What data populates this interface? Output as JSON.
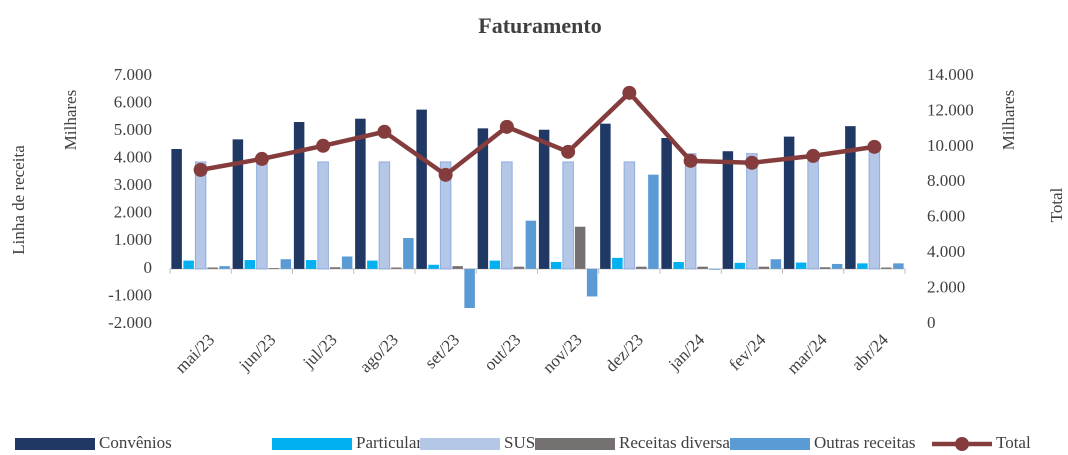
{
  "chart_data": {
    "type": "bar",
    "title": "Faturamento",
    "y_label": "Linha de receita",
    "y_unit": "Milhares",
    "y2_label": "Total",
    "y2_unit": "Milhares",
    "categories": [
      "mai/23",
      "jun/23",
      "jul/23",
      "ago/23",
      "set/23",
      "out/23",
      "nov/23",
      "dez/23",
      "jan/24",
      "fev/24",
      "mar/24",
      "abr/24"
    ],
    "series": [
      {
        "name": "Convênios",
        "color": "#1f3864",
        "values": [
          4350,
          4700,
          5330,
          5450,
          5780,
          5100,
          5050,
          5270,
          4750,
          4270,
          4800,
          5180
        ]
      },
      {
        "name": "Particulares",
        "color": "#00b0f0",
        "values": [
          300,
          320,
          320,
          300,
          150,
          300,
          250,
          400,
          250,
          220,
          230,
          200
        ]
      },
      {
        "name": "SUS",
        "color": "#b4c7e7",
        "values": [
          3880,
          3880,
          3880,
          3880,
          3880,
          3880,
          3880,
          3880,
          4180,
          4180,
          4180,
          4400
        ]
      },
      {
        "name": "Receitas diversas",
        "color": "#767171",
        "values": [
          50,
          30,
          60,
          50,
          100,
          80,
          1530,
          80,
          80,
          80,
          60,
          50
        ]
      },
      {
        "name": "Outras receitas",
        "color": "#5b9bd5",
        "values": [
          100,
          350,
          450,
          1120,
          -1420,
          1750,
          -1000,
          3420,
          -30,
          350,
          180,
          200
        ]
      },
      {
        "name": "Total",
        "type": "line",
        "axis": "y2",
        "color": "#843c3c",
        "values": [
          8700,
          9320,
          10060,
          10850,
          8420,
          11130,
          9720,
          13050,
          9210,
          9100,
          9490,
          10000
        ]
      }
    ],
    "ylim": [
      -2000,
      7000
    ],
    "yticks": [
      {
        "value": -2000,
        "label": "-2.000"
      },
      {
        "value": -1000,
        "label": "-1.000"
      },
      0,
      {
        "value": 1000,
        "label": "1.000"
      },
      {
        "value": 2000,
        "label": "2.000"
      },
      {
        "value": 3000,
        "label": "3.000"
      },
      {
        "value": 4000,
        "label": "4.000"
      },
      {
        "value": 5000,
        "label": "5.000"
      },
      {
        "value": 6000,
        "label": "6.000"
      },
      {
        "value": 7000,
        "label": "7.000"
      }
    ],
    "y2lim": [
      0,
      14000
    ],
    "y2ticks": [
      0,
      {
        "value": 2000,
        "label": "2.000"
      },
      {
        "value": 4000,
        "label": "4.000"
      },
      {
        "value": 6000,
        "label": "6.000"
      },
      {
        "value": 8000,
        "label": "8.000"
      },
      {
        "value": 10000,
        "label": "10.000"
      },
      {
        "value": 12000,
        "label": "12.000"
      },
      {
        "value": 14000,
        "label": "14.000"
      }
    ],
    "legend": "bottom",
    "grid": false
  }
}
